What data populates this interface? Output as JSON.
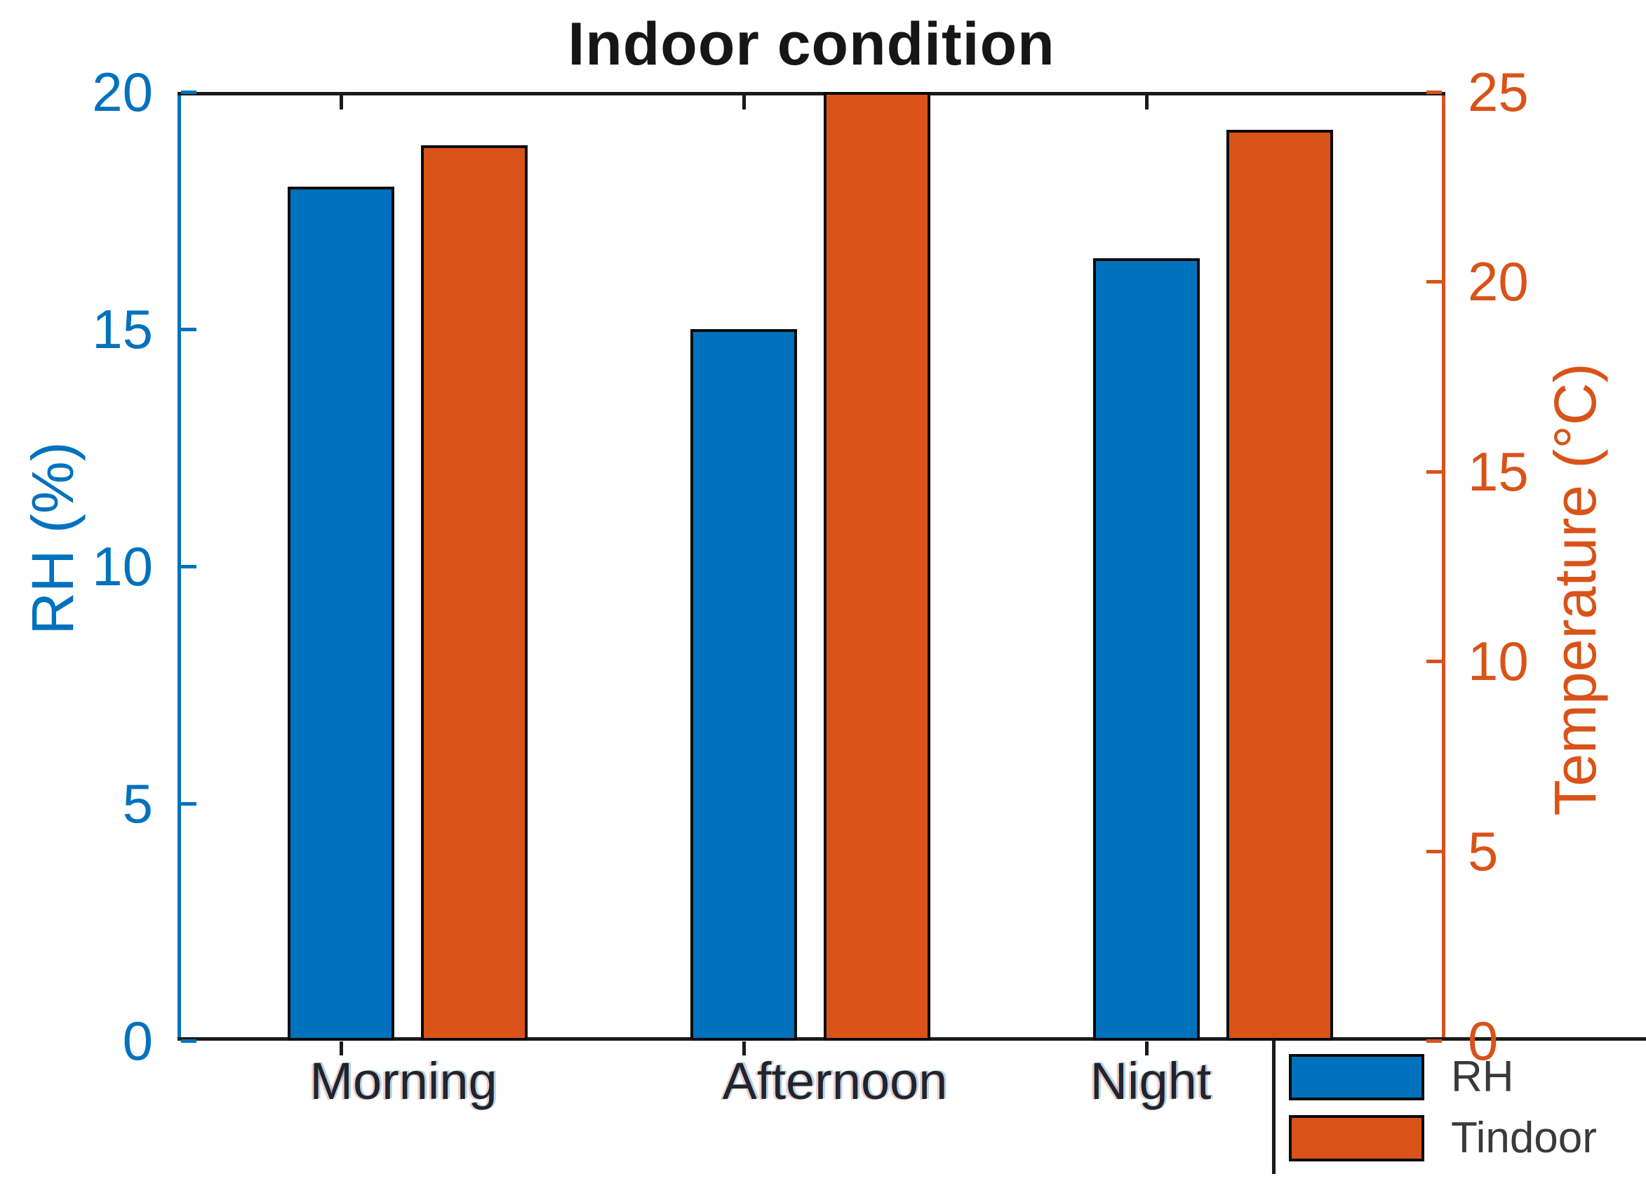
{
  "chart_data": {
    "type": "bar",
    "title": "Indoor condition",
    "categories": [
      "Morning",
      "Afternoon",
      "Night"
    ],
    "series": [
      {
        "name": "RH",
        "axis": "left",
        "color": "#0072BD",
        "values": [
          18,
          15,
          16.5
        ]
      },
      {
        "name": "Tindoor",
        "axis": "right",
        "color": "#D95319",
        "values": [
          23.6,
          25,
          24
        ]
      }
    ],
    "left_axis": {
      "label": "RH (%)",
      "color": "#0072BD",
      "range": [
        0,
        20
      ],
      "ticks": [
        0,
        5,
        10,
        15,
        20
      ]
    },
    "right_axis": {
      "label": "Temperature (°C)",
      "color": "#D95319",
      "range": [
        0,
        25
      ],
      "ticks": [
        0,
        5,
        10,
        15,
        20,
        25
      ]
    },
    "legend": {
      "position": "bottom-right",
      "entries": [
        {
          "label": "RH",
          "color": "#0072BD"
        },
        {
          "label": "Tindoor",
          "color": "#D95319"
        }
      ]
    },
    "grid": false,
    "frame_color": "#1a1a1a",
    "background": "#ffffff"
  }
}
